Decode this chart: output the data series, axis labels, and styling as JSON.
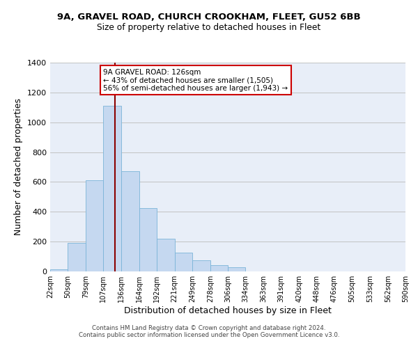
{
  "title": "9A, GRAVEL ROAD, CHURCH CROOKHAM, FLEET, GU52 6BB",
  "subtitle": "Size of property relative to detached houses in Fleet",
  "xlabel": "Distribution of detached houses by size in Fleet",
  "ylabel": "Number of detached properties",
  "bar_color": "#c5d8f0",
  "bar_edge_color": "#7ab4d8",
  "bg_color": "#e8eef8",
  "grid_color": "#bbbbbb",
  "vline_x": 126,
  "vline_color": "#8b0000",
  "annotation_title": "9A GRAVEL ROAD: 126sqm",
  "annotation_line1": "← 43% of detached houses are smaller (1,505)",
  "annotation_line2": "56% of semi-detached houses are larger (1,943) →",
  "annotation_box_edge": "#cc0000",
  "footer1": "Contains HM Land Registry data © Crown copyright and database right 2024.",
  "footer2": "Contains public sector information licensed under the Open Government Licence v3.0.",
  "bin_edges": [
    22,
    50,
    79,
    107,
    136,
    164,
    192,
    221,
    249,
    278,
    306,
    334,
    363,
    391,
    420,
    448,
    476,
    505,
    533,
    562,
    590
  ],
  "bar_heights": [
    15,
    190,
    610,
    1110,
    670,
    425,
    220,
    125,
    75,
    40,
    30,
    0,
    0,
    0,
    0,
    0,
    0,
    0,
    0,
    0
  ],
  "ylim": [
    0,
    1400
  ],
  "yticks": [
    0,
    200,
    400,
    600,
    800,
    1000,
    1200,
    1400
  ]
}
